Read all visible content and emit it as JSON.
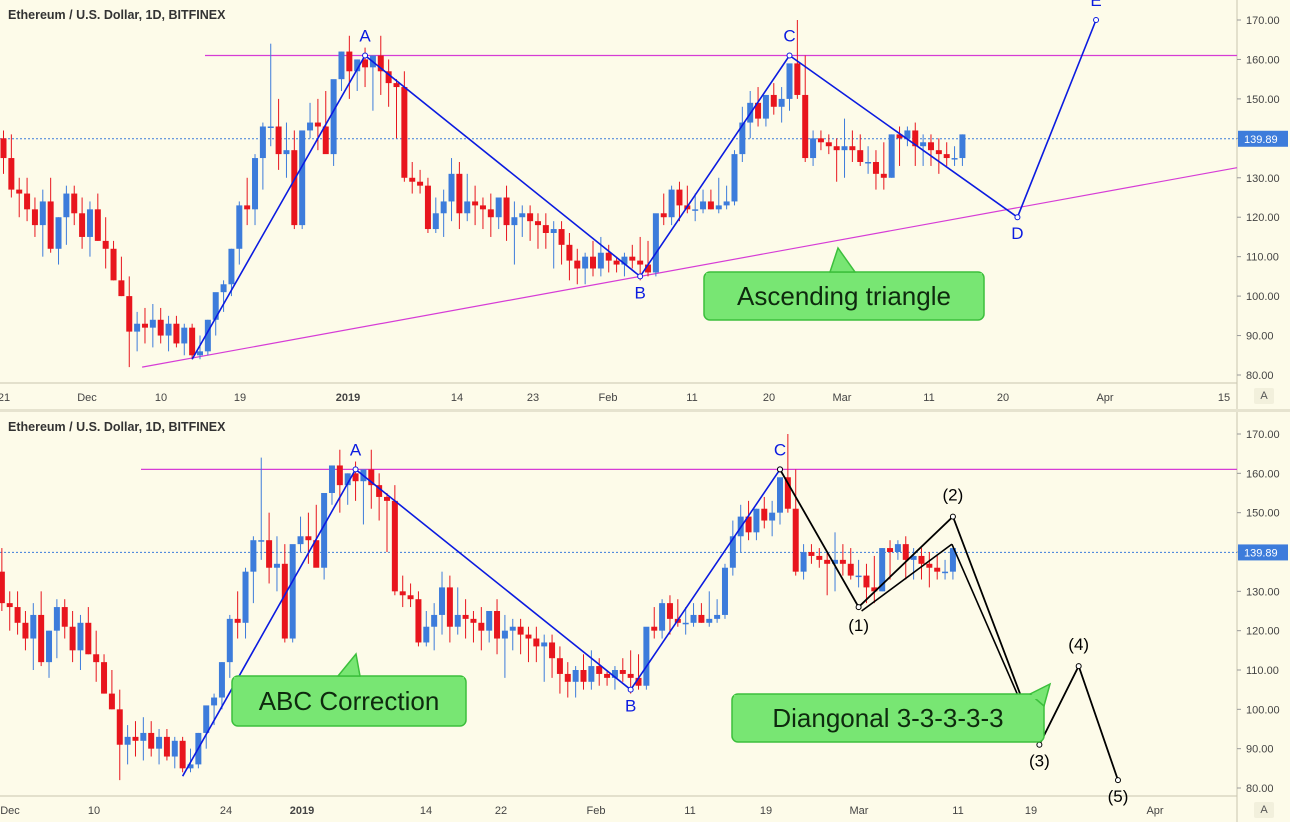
{
  "colors": {
    "background": "#fdfbe9",
    "bull": "#3d7cdb",
    "bear": "#e8151d",
    "pattern_line": "#0b1be0",
    "resistance": "#d63cd6",
    "elliott_line": "#000000",
    "callout_fill": "#78e673",
    "callout_border": "#3cbf3c",
    "price_label_bg": "#3d7cdb"
  },
  "chart_data": [
    {
      "type": "candlestick",
      "title": "Ethereum / U.S. Dollar, 1D, BITFINEX",
      "price_label": "139.89",
      "scale_button": "A",
      "y_ticks": [
        "170.00",
        "160.00",
        "150.00",
        "140.00",
        "130.00",
        "120.00",
        "110.00",
        "100.00",
        "90.00",
        "80.00"
      ],
      "ylim": [
        80,
        170
      ],
      "x_ticks": [
        "21",
        "Dec",
        "10",
        "19",
        "2019",
        "14",
        "23",
        "Feb",
        "11",
        "20",
        "Mar",
        "11",
        "20",
        "Apr",
        "15"
      ],
      "candles_ohlc": [
        [
          140,
          142,
          131,
          135
        ],
        [
          135,
          141,
          125,
          127
        ],
        [
          127,
          130,
          120,
          126
        ],
        [
          126,
          130,
          119,
          122
        ],
        [
          122,
          125,
          115,
          118
        ],
        [
          118,
          127,
          110,
          124
        ],
        [
          124,
          130,
          111,
          112
        ],
        [
          112,
          120,
          108,
          120
        ],
        [
          120,
          128,
          113,
          126
        ],
        [
          126,
          128,
          118,
          121
        ],
        [
          121,
          125,
          112,
          115
        ],
        [
          115,
          124,
          110,
          122
        ],
        [
          122,
          126,
          114,
          114
        ],
        [
          114,
          120,
          107,
          112
        ],
        [
          112,
          114,
          104,
          104
        ],
        [
          104,
          110,
          100,
          100
        ],
        [
          100,
          105,
          82,
          91
        ],
        [
          91,
          96,
          86,
          93
        ],
        [
          93,
          97,
          88,
          92
        ],
        [
          92,
          98,
          87,
          94
        ],
        [
          94,
          97,
          88,
          90
        ],
        [
          90,
          95,
          86,
          93
        ],
        [
          93,
          95,
          87,
          88
        ],
        [
          88,
          93,
          85,
          92
        ],
        [
          92,
          93,
          84,
          85
        ],
        [
          85,
          90,
          84,
          86
        ],
        [
          86,
          94,
          85,
          94
        ],
        [
          94,
          100,
          90,
          101
        ],
        [
          101,
          104,
          96,
          103
        ],
        [
          103,
          112,
          100,
          112
        ],
        [
          112,
          124,
          108,
          123
        ],
        [
          123,
          130,
          118,
          122
        ],
        [
          122,
          136,
          118,
          135
        ],
        [
          135,
          144,
          127,
          143
        ],
        [
          143,
          164,
          138,
          143
        ],
        [
          143,
          150,
          132,
          136
        ],
        [
          136,
          144,
          130,
          137
        ],
        [
          137,
          142,
          117,
          118
        ],
        [
          118,
          138,
          117,
          142
        ],
        [
          142,
          149,
          140,
          144
        ],
        [
          144,
          150,
          137,
          143
        ],
        [
          143,
          152,
          139,
          136
        ],
        [
          136,
          153,
          133,
          155
        ],
        [
          155,
          162,
          152,
          162
        ],
        [
          162,
          166,
          150,
          157
        ],
        [
          157,
          160,
          152,
          160
        ],
        [
          160,
          163,
          153,
          158
        ],
        [
          158,
          160,
          147,
          161
        ],
        [
          161,
          166,
          151,
          157
        ],
        [
          157,
          160,
          148,
          154
        ],
        [
          154,
          155,
          140,
          153
        ],
        [
          153,
          157,
          129,
          130
        ],
        [
          130,
          134,
          126,
          129
        ],
        [
          129,
          132,
          126,
          128
        ],
        [
          128,
          130,
          116,
          117
        ],
        [
          117,
          125,
          116,
          121
        ],
        [
          121,
          127,
          115,
          124
        ],
        [
          124,
          135,
          119,
          131
        ],
        [
          131,
          134,
          117,
          121
        ],
        [
          121,
          131,
          119,
          124
        ],
        [
          124,
          128,
          118,
          123
        ],
        [
          123,
          125,
          117,
          122
        ],
        [
          122,
          126,
          115,
          120
        ],
        [
          120,
          125,
          117,
          125
        ],
        [
          125,
          128,
          114,
          118
        ],
        [
          118,
          124,
          108,
          120
        ],
        [
          120,
          123,
          115,
          121
        ],
        [
          121,
          123,
          114,
          119
        ],
        [
          119,
          121,
          112,
          118
        ],
        [
          118,
          121,
          112,
          116
        ],
        [
          116,
          119,
          107,
          117
        ],
        [
          117,
          119,
          108,
          113
        ],
        [
          113,
          116,
          104,
          109
        ],
        [
          109,
          112,
          103,
          107
        ],
        [
          107,
          111,
          103,
          110
        ],
        [
          110,
          114,
          105,
          107
        ],
        [
          107,
          115,
          105,
          111
        ],
        [
          111,
          113,
          106,
          109
        ],
        [
          109,
          110,
          106,
          108
        ],
        [
          108,
          111,
          105,
          110
        ],
        [
          110,
          113,
          107,
          109
        ],
        [
          109,
          115,
          104,
          108
        ],
        [
          108,
          114,
          105,
          106
        ],
        [
          106,
          115,
          105,
          121
        ],
        [
          121,
          126,
          118,
          120
        ],
        [
          120,
          128,
          118,
          127
        ],
        [
          127,
          129,
          119,
          123
        ],
        [
          123,
          128,
          121,
          122
        ],
        [
          122,
          126,
          119,
          122
        ],
        [
          122,
          127,
          121,
          124
        ],
        [
          124,
          127,
          122,
          122
        ],
        [
          122,
          130,
          121,
          123
        ],
        [
          123,
          128,
          122,
          124
        ],
        [
          124,
          137,
          123,
          136
        ],
        [
          136,
          148,
          134,
          144
        ],
        [
          144,
          152,
          140,
          149
        ],
        [
          149,
          153,
          143,
          145
        ],
        [
          145,
          151,
          143,
          151
        ],
        [
          151,
          154,
          146,
          148
        ],
        [
          148,
          153,
          144,
          150
        ],
        [
          150,
          156,
          147,
          159
        ],
        [
          159,
          170,
          150,
          151
        ],
        [
          151,
          161,
          134,
          135
        ],
        [
          135,
          142,
          133,
          140
        ],
        [
          140,
          142,
          137,
          139
        ],
        [
          139,
          141,
          136,
          138
        ],
        [
          138,
          140,
          129,
          137
        ],
        [
          137,
          145,
          130,
          138
        ],
        [
          138,
          142,
          134,
          137
        ],
        [
          137,
          141,
          133,
          134
        ],
        [
          134,
          138,
          131,
          134
        ],
        [
          134,
          137,
          127,
          131
        ],
        [
          131,
          139,
          127,
          130
        ],
        [
          130,
          141,
          130,
          141
        ],
        [
          141,
          143,
          133,
          140
        ],
        [
          140,
          143,
          138,
          142
        ],
        [
          142,
          144,
          133,
          138
        ],
        [
          138,
          141,
          133,
          139
        ],
        [
          139,
          141,
          133,
          137
        ],
        [
          137,
          140,
          131,
          136
        ],
        [
          136,
          139,
          133,
          135
        ],
        [
          135,
          138,
          133,
          135
        ],
        [
          135,
          141,
          133,
          141
        ]
      ],
      "wave_labels": [
        "A",
        "B",
        "C",
        "D",
        "E"
      ],
      "wave_points": [
        {
          "label": "",
          "date_index": 24,
          "price": 84
        },
        {
          "label": "A",
          "date_index": 46,
          "price": 161
        },
        {
          "label": "B",
          "date_index": 81,
          "price": 105
        },
        {
          "label": "C",
          "date_index": 100,
          "price": 161
        },
        {
          "label": "D",
          "date_index": 129,
          "price": 120
        },
        {
          "label": "E",
          "date_index": 139,
          "price": 170
        }
      ],
      "resistance_level": 161,
      "support_line": [
        {
          "date_index": 17,
          "price": 82
        },
        {
          "date_index": 152,
          "price": 131
        }
      ],
      "callout": "Ascending triangle"
    },
    {
      "type": "candlestick",
      "title": "Ethereum / U.S. Dollar, 1D, BITFINEX",
      "price_label": "139.89",
      "scale_button": "A",
      "y_ticks": [
        "170.00",
        "160.00",
        "150.00",
        "140.00",
        "130.00",
        "120.00",
        "110.00",
        "100.00",
        "90.00",
        "80.00"
      ],
      "ylim": [
        80,
        170
      ],
      "x_ticks": [
        "Dec",
        "10",
        "24",
        "2019",
        "14",
        "22",
        "Feb",
        "11",
        "19",
        "Mar",
        "11",
        "19",
        "Apr"
      ],
      "wave_labels": [
        "A",
        "B",
        "C"
      ],
      "wave_points": [
        {
          "label": "",
          "date_index": 24,
          "price": 83
        },
        {
          "label": "A",
          "date_index": 46,
          "price": 161
        },
        {
          "label": "B",
          "date_index": 81,
          "price": 105
        },
        {
          "label": "C",
          "date_index": 100,
          "price": 161
        }
      ],
      "resistance_level": 161,
      "elliott_labels": [
        "(1)",
        "(2)",
        "(3)",
        "(4)",
        "(5)"
      ],
      "elliott_points": [
        {
          "label": "C",
          "date_index": 100,
          "price": 161
        },
        {
          "label": "(1)",
          "date_index": 110,
          "price": 126
        },
        {
          "label": "(2)",
          "date_index": 122,
          "price": 149
        },
        {
          "label": "(3)",
          "date_index": 133,
          "price": 91
        },
        {
          "label": "(4)",
          "date_index": 138,
          "price": 111
        },
        {
          "label": "(5)",
          "date_index": 143,
          "price": 82
        }
      ],
      "callouts": [
        "ABC Correction",
        "Diangonal 3-3-3-3-3"
      ]
    }
  ]
}
